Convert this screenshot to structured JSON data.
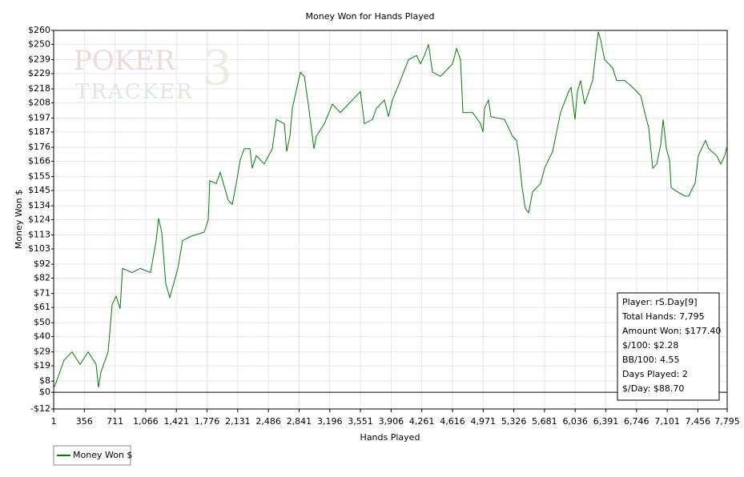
{
  "chart_data": {
    "type": "line",
    "title": "Money Won for Hands Played",
    "x_label": "Hands Played",
    "y_label": "Money Won $",
    "watermark": [
      "POKER",
      "TRACKER",
      "3"
    ],
    "x": [
      1,
      29,
      121,
      214,
      307,
      400,
      492,
      520,
      548,
      631,
      678,
      724,
      770,
      798,
      909,
      1002,
      1122,
      1187,
      1215,
      1252,
      1298,
      1345,
      1438,
      1493,
      1586,
      1743,
      1790,
      1808,
      1882,
      1929,
      2021,
      2068,
      2114,
      2160,
      2207,
      2272,
      2299,
      2346,
      2438,
      2531,
      2577,
      2670,
      2698,
      2735,
      2763,
      2856,
      2902,
      2948,
      3013,
      3041,
      3134,
      3226,
      3319,
      3458,
      3551,
      3597,
      3690,
      3736,
      3829,
      3875,
      3921,
      4014,
      4107,
      4200,
      4246,
      4292,
      4339,
      4385,
      4478,
      4617,
      4663,
      4709,
      4737,
      4848,
      4941,
      4969,
      4987,
      5033,
      5061,
      5219,
      5311,
      5358,
      5385,
      5422,
      5459,
      5497,
      5543,
      5636,
      5682,
      5728,
      5775,
      5821,
      5867,
      5960,
      5988,
      6034,
      6062,
      6099,
      6145,
      6238,
      6275,
      6303,
      6331,
      6377,
      6470,
      6516,
      6609,
      6702,
      6795,
      6841,
      6887,
      6934,
      6980,
      7026,
      7054,
      7091,
      7128,
      7147,
      7220,
      7304,
      7350,
      7396,
      7424,
      7461,
      7544,
      7581,
      7674,
      7720,
      7767,
      7795
    ],
    "series": [
      {
        "name": "Money Won $",
        "color": "#008000",
        "values": [
          3,
          7,
          23,
          29,
          20,
          29,
          20,
          3.5,
          14.5,
          29,
          63,
          69,
          60,
          89,
          86,
          89,
          86,
          109,
          125,
          115,
          78,
          68,
          89,
          109,
          112,
          115,
          124,
          152,
          150,
          158,
          138,
          135,
          150,
          167,
          175,
          175,
          161,
          170,
          164,
          175,
          196,
          193,
          173,
          184,
          204,
          230,
          227,
          207,
          175,
          184,
          193,
          207,
          201,
          210,
          216,
          193,
          196,
          204,
          210,
          198,
          210,
          224,
          239,
          242,
          236,
          242,
          250,
          230,
          227,
          236,
          247,
          239,
          201,
          201,
          193,
          187,
          204,
          210,
          198,
          196,
          184,
          181,
          170,
          147,
          132,
          129,
          144,
          150,
          161,
          167,
          173,
          187,
          201,
          216,
          219,
          196,
          216,
          224,
          207,
          224,
          244,
          259,
          253,
          239,
          233,
          224,
          224,
          219,
          213,
          201,
          190,
          161,
          164,
          178,
          196,
          175,
          167,
          147,
          144,
          141,
          141,
          147,
          150,
          170,
          181,
          175,
          170,
          164,
          170,
          177.4
        ]
      }
    ],
    "xlim": [
      1,
      7795
    ],
    "xticks": [
      1,
      356,
      711,
      {
        "value": 1066,
        "label": "1,066"
      },
      {
        "value": 1421,
        "label": "1,421"
      },
      {
        "value": 1776,
        "label": "1,776"
      },
      {
        "value": 2131,
        "label": "2,131"
      },
      {
        "value": 2486,
        "label": "2,486"
      },
      {
        "value": 2841,
        "label": "2,841"
      },
      {
        "value": 3196,
        "label": "3,196"
      },
      {
        "value": 3551,
        "label": "3,551"
      },
      {
        "value": 3906,
        "label": "3,906"
      },
      {
        "value": 4261,
        "label": "4,261"
      },
      {
        "value": 4616,
        "label": "4,616"
      },
      {
        "value": 4971,
        "label": "4,971"
      },
      {
        "value": 5326,
        "label": "5,326"
      },
      {
        "value": 5681,
        "label": "5,681"
      },
      {
        "value": 6036,
        "label": "6,036"
      },
      {
        "value": 6391,
        "label": "6,391"
      },
      {
        "value": 6746,
        "label": "6,746"
      },
      {
        "value": 7101,
        "label": "7,101"
      },
      {
        "value": 7456,
        "label": "7,456"
      },
      {
        "value": 7795,
        "label": "7,795"
      }
    ],
    "ylim": [
      -12,
      260
    ],
    "yticks": [
      {
        "value": -12,
        "label": "-$12"
      },
      {
        "value": 0,
        "label": "$0"
      },
      {
        "value": 8,
        "label": "$8"
      },
      {
        "value": 19,
        "label": "$19"
      },
      {
        "value": 29,
        "label": "$29"
      },
      {
        "value": 40,
        "label": "$40"
      },
      {
        "value": 50,
        "label": "$50"
      },
      {
        "value": 61,
        "label": "$61"
      },
      {
        "value": 71,
        "label": "$71"
      },
      {
        "value": 82,
        "label": "$82"
      },
      {
        "value": 92,
        "label": "$92"
      },
      {
        "value": 103,
        "label": "$103"
      },
      {
        "value": 113,
        "label": "$113"
      },
      {
        "value": 124,
        "label": "$124"
      },
      {
        "value": 134,
        "label": "$134"
      },
      {
        "value": 145,
        "label": "$145"
      },
      {
        "value": 155,
        "label": "$155"
      },
      {
        "value": 166,
        "label": "$166"
      },
      {
        "value": 176,
        "label": "$176"
      },
      {
        "value": 187,
        "label": "$187"
      },
      {
        "value": 197,
        "label": "$197"
      },
      {
        "value": 208,
        "label": "$208"
      },
      {
        "value": 218,
        "label": "$218"
      },
      {
        "value": 229,
        "label": "$229"
      },
      {
        "value": 239,
        "label": "$239"
      },
      {
        "value": 250,
        "label": "$250"
      },
      {
        "value": 260,
        "label": "$260"
      }
    ],
    "grid": true,
    "legend": "bottom-left",
    "info_box": [
      "Player: rS.Day[9]",
      "Total Hands: 7,795",
      "Amount Won: $177.40",
      "$/100: $2.28",
      "BB/100: 4.55",
      "Days Played: 2",
      "$/Day: $88.70"
    ]
  }
}
